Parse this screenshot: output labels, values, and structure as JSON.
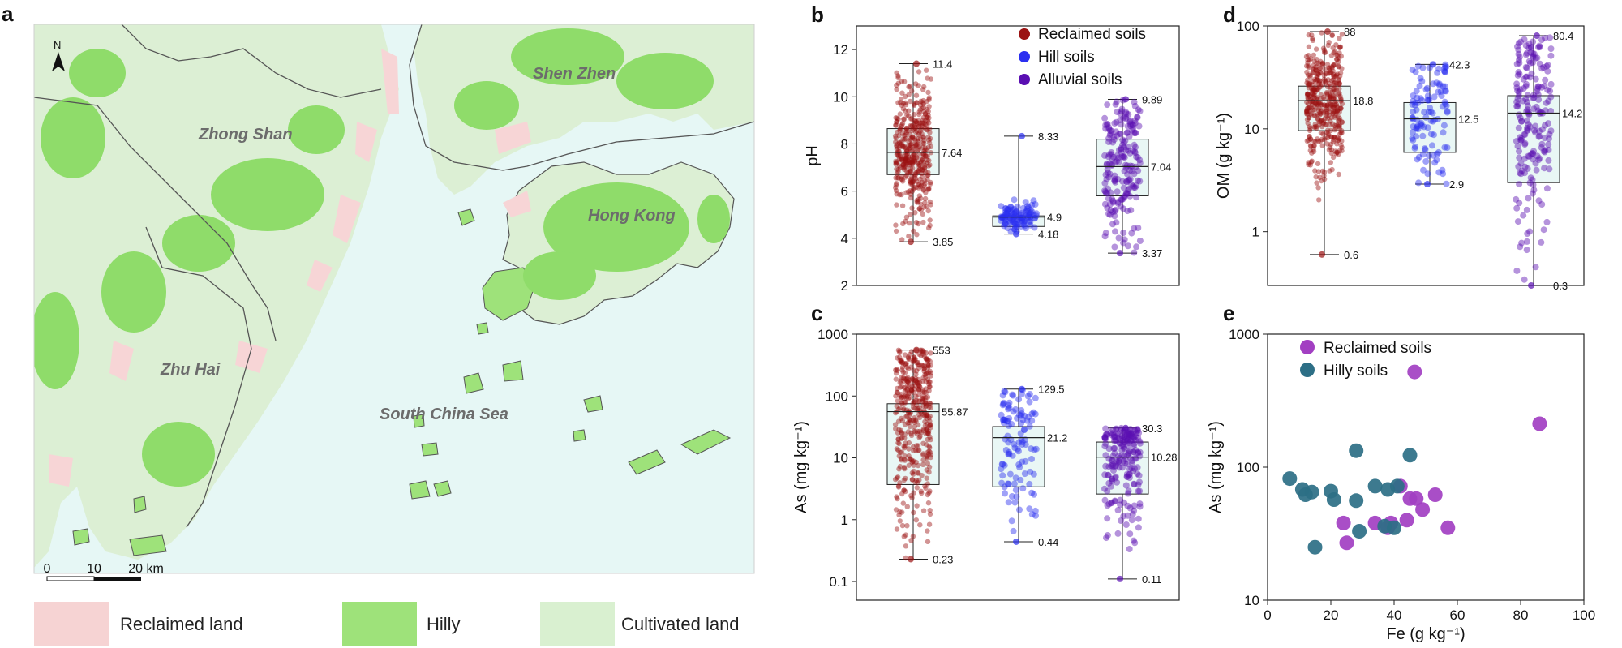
{
  "panel_labels": {
    "a": "a",
    "b": "b",
    "c": "c",
    "d": "d",
    "e": "e"
  },
  "map": {
    "north_label": "N",
    "places": [
      "Zhong Shan",
      "Shen Zhen",
      "Hong Kong",
      "Zhu Hai",
      "South China Sea"
    ],
    "scale": {
      "ticks": [
        "0",
        "10",
        "20 km"
      ]
    },
    "legend": [
      {
        "label": "Reclaimed land",
        "color": "#f6d3d3"
      },
      {
        "label": "Hilly",
        "color": "#9ee27a"
      },
      {
        "label": "Cultivated land",
        "color": "#d9f0d0"
      }
    ],
    "colors": {
      "sea": "#e6f7f5",
      "land": "#dcefd4",
      "hilly": "#8fdc6a",
      "reclaimed": "#f7d5d6",
      "boundary": "#555555"
    }
  },
  "groups": [
    {
      "name": "Reclaimed soils",
      "color": "#9b1212"
    },
    {
      "name": "Hill soils",
      "color": "#2b2ff0"
    },
    {
      "name": "Alluvial soils",
      "color": "#5a0fb2"
    }
  ],
  "chart_data": [
    {
      "id": "b",
      "type": "box",
      "ylabel": "pH",
      "scale": "linear",
      "ylim": [
        2,
        13
      ],
      "yticks": [
        2,
        4,
        6,
        8,
        10,
        12
      ],
      "boxes": [
        {
          "group": "Reclaimed soils",
          "min": 3.85,
          "q1": 6.7,
          "median": 7.64,
          "q3": 8.65,
          "max": 11.4,
          "labels": {
            "max": "11.4",
            "median": "7.64",
            "min": "3.85"
          },
          "n": 420
        },
        {
          "group": "Hill soils",
          "min": 4.18,
          "q1": 4.5,
          "median": 4.9,
          "q3": 4.95,
          "max": 8.33,
          "labels": {
            "max": "8.33",
            "median": "4.9",
            "min": "4.18"
          },
          "n": 110
        },
        {
          "group": "Alluvial soils",
          "min": 3.37,
          "q1": 5.8,
          "median": 7.04,
          "q3": 8.2,
          "max": 9.89,
          "labels": {
            "max": "9.89",
            "median": "7.04",
            "min": "3.37"
          },
          "n": 200
        }
      ]
    },
    {
      "id": "c",
      "type": "box",
      "ylabel": "As (mg kg⁻¹)",
      "scale": "log",
      "ylim": [
        0.05,
        1000
      ],
      "yticks": [
        0.1,
        1,
        10,
        100,
        1000
      ],
      "ytick_labels": [
        "0.1",
        "1",
        "10",
        "100",
        "1000"
      ],
      "boxes": [
        {
          "group": "Reclaimed soils",
          "min": 0.23,
          "q1": 3.7,
          "median": 55.87,
          "q3": 75,
          "max": 553,
          "labels": {
            "max": "553",
            "median": "55.87",
            "min": "0.23"
          },
          "n": 420
        },
        {
          "group": "Hill soils",
          "min": 0.44,
          "q1": 3.4,
          "median": 21.2,
          "q3": 32,
          "max": 129.5,
          "labels": {
            "max": "129.5",
            "median": "21.2",
            "min": "0.44"
          },
          "n": 110
        },
        {
          "group": "Alluvial soils",
          "min": 0.11,
          "q1": 2.6,
          "median": 10.28,
          "q3": 18,
          "max": 30.3,
          "labels": {
            "max": "30.3",
            "median": "10.28",
            "min": "0.11"
          },
          "n": 200
        }
      ]
    },
    {
      "id": "d",
      "type": "box",
      "ylabel": "OM (g kg⁻¹)",
      "scale": "log",
      "ylim": [
        0.3,
        100
      ],
      "yticks": [
        1,
        10,
        100
      ],
      "ytick_labels": [
        "1",
        "10",
        "100"
      ],
      "boxes": [
        {
          "group": "Reclaimed soils",
          "min": 0.6,
          "q1": 9.6,
          "median": 18.8,
          "q3": 26,
          "max": 88,
          "labels": {
            "max": "88",
            "median": "18.8",
            "min": "0.6"
          },
          "n": 420
        },
        {
          "group": "Hill soils",
          "min": 2.9,
          "q1": 5.9,
          "median": 12.5,
          "q3": 18,
          "max": 42.3,
          "labels": {
            "max": "42.3",
            "median": "12.5",
            "min": "2.9"
          },
          "n": 110
        },
        {
          "group": "Alluvial soils",
          "min": 0.3,
          "q1": 3.0,
          "median": 14.2,
          "q3": 21,
          "max": 80.4,
          "labels": {
            "max": "80.4",
            "median": "14.2",
            "min": "0.3"
          },
          "n": 200
        }
      ]
    },
    {
      "id": "e",
      "type": "scatter",
      "xlabel": "Fe (g kg⁻¹)",
      "ylabel": "As (mg kg⁻¹)",
      "xlim": [
        0,
        100
      ],
      "ylim": [
        10,
        1000
      ],
      "yscale": "log",
      "xticks": [
        0,
        20,
        40,
        60,
        80,
        100
      ],
      "yticks": [
        10,
        100,
        1000
      ],
      "legend_position": "top-left",
      "series": [
        {
          "name": "Reclaimed soils",
          "color": "#a23fc2",
          "points": [
            [
              46.5,
              520
            ],
            [
              86,
              212
            ],
            [
              42,
              72
            ],
            [
              45,
              58
            ],
            [
              47,
              58
            ],
            [
              49,
              48
            ],
            [
              53,
              62
            ],
            [
              57,
              35
            ],
            [
              24,
              38
            ],
            [
              34,
              38
            ],
            [
              39,
              38
            ],
            [
              44,
              40
            ],
            [
              25,
              27
            ],
            [
              38,
              35
            ]
          ]
        },
        {
          "name": "Hilly soils",
          "color": "#2d6f86",
          "points": [
            [
              7,
              82
            ],
            [
              11,
              68
            ],
            [
              12,
              62
            ],
            [
              14,
              65
            ],
            [
              20,
              66
            ],
            [
              21,
              57
            ],
            [
              28,
              133
            ],
            [
              28,
              56
            ],
            [
              34,
              72
            ],
            [
              38,
              68
            ],
            [
              41,
              72
            ],
            [
              45,
              123
            ],
            [
              15,
              25
            ],
            [
              29,
              33
            ],
            [
              37,
              36
            ],
            [
              40,
              35
            ]
          ]
        }
      ]
    }
  ]
}
